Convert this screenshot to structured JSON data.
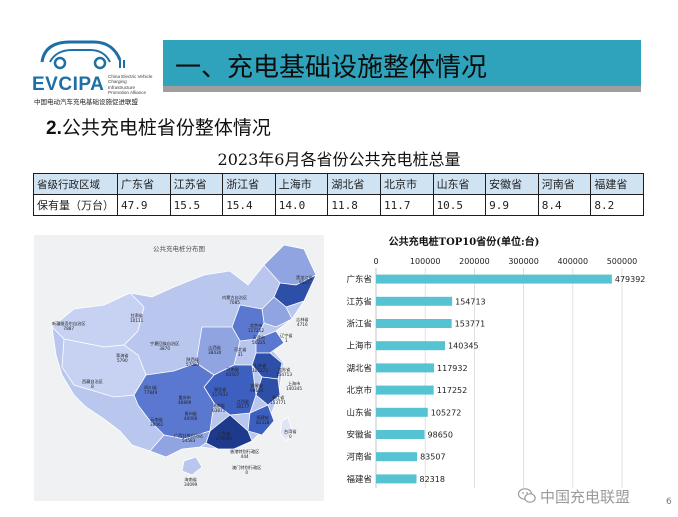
{
  "logo": {
    "name": "EVCIPA",
    "subtitle": "China Electric Vehicle Charging Infrastructure Promotion Alliance",
    "cn_name": "中国电动汽车充电基础设施促进联盟"
  },
  "header": {
    "title": "一、充电基础设施整体情况"
  },
  "section": {
    "number": "2.",
    "title": "公共充电桩省份整体情况"
  },
  "table": {
    "title": "2023年6月各省份公共充电桩总量",
    "row_labels": [
      "省级行政区域",
      "保有量（万台）"
    ],
    "provinces": [
      "广东省",
      "江苏省",
      "浙江省",
      "上海市",
      "湖北省",
      "北京市",
      "山东省",
      "安徽省",
      "河南省",
      "福建省"
    ],
    "values": [
      "47.9",
      "15.5",
      "15.4",
      "14.0",
      "11.8",
      "11.7",
      "10.5",
      "9.9",
      "8.4",
      "8.2"
    ]
  },
  "map": {
    "title": "公共充电桩分布图",
    "colors": {
      "dark": "#2e4fa8",
      "mid": "#5a78cf",
      "light": "#8fa4e0",
      "pale": "#b9c6ee",
      "sea": "#eff1f3"
    },
    "regions": [
      {
        "name": "黑龙江省",
        "value": "9527"
      },
      {
        "name": "吉林省",
        "value": "4716"
      },
      {
        "name": "辽宁省",
        "value": "1"
      },
      {
        "name": "内蒙古自治区",
        "value": "7085"
      },
      {
        "name": "北京市",
        "value": "117252"
      },
      {
        "name": "天津市",
        "value": "56225"
      },
      {
        "name": "河北省",
        "value": "31"
      },
      {
        "name": "新疆维吾尔自治区",
        "value": "7887"
      },
      {
        "name": "甘肃省",
        "value": "10111"
      },
      {
        "name": "宁夏回族自治区",
        "value": "3870"
      },
      {
        "name": "青海省",
        "value": "5790"
      },
      {
        "name": "西藏自治区",
        "value": "8"
      },
      {
        "name": "陕西省",
        "value": "57083"
      },
      {
        "name": "山西省",
        "value": "38430"
      },
      {
        "name": "山东省",
        "value": "105272"
      },
      {
        "name": "河南省",
        "value": "83507"
      },
      {
        "name": "江苏省",
        "value": "154713"
      },
      {
        "name": "安徽省",
        "value": "98650"
      },
      {
        "name": "上海市",
        "value": "140345"
      },
      {
        "name": "四川省",
        "value": "77849"
      },
      {
        "name": "湖北省",
        "value": "117932"
      },
      {
        "name": "浙江省",
        "value": "153771"
      },
      {
        "name": "重庆市",
        "value": "46899"
      },
      {
        "name": "湖南省",
        "value": "63871"
      },
      {
        "name": "江西省",
        "value": "30177"
      },
      {
        "name": "贵州省",
        "value": "40006"
      },
      {
        "name": "福建省",
        "value": "82318"
      },
      {
        "name": "云南省",
        "value": "38061"
      },
      {
        "name": "广西壮族自治区",
        "value": "54583"
      },
      {
        "name": "广东省",
        "value": "479392"
      },
      {
        "name": "台湾省",
        "value": "0"
      },
      {
        "name": "香港特别行政区",
        "value": "444"
      },
      {
        "name": "澳门特别行政区",
        "value": "0"
      },
      {
        "name": "海南省",
        "value": "34099"
      }
    ]
  },
  "chart_data": {
    "type": "bar",
    "orientation": "horizontal",
    "title": "公共充电桩TOP10省份(单位:台)",
    "categories": [
      "广东省",
      "江苏省",
      "浙江省",
      "上海市",
      "湖北省",
      "北京市",
      "山东省",
      "安徽省",
      "河南省",
      "福建省"
    ],
    "values": [
      479392,
      154713,
      153771,
      140345,
      117932,
      117252,
      105272,
      98650,
      83507,
      82318
    ],
    "xlim": [
      0,
      500000
    ],
    "xticks": [
      0,
      100000,
      200000,
      300000,
      400000,
      500000
    ],
    "axis_position": "top",
    "grid": true,
    "color": "#56c3d2"
  },
  "watermark": {
    "text": "中国充电联盟"
  },
  "page": {
    "number": "6"
  }
}
